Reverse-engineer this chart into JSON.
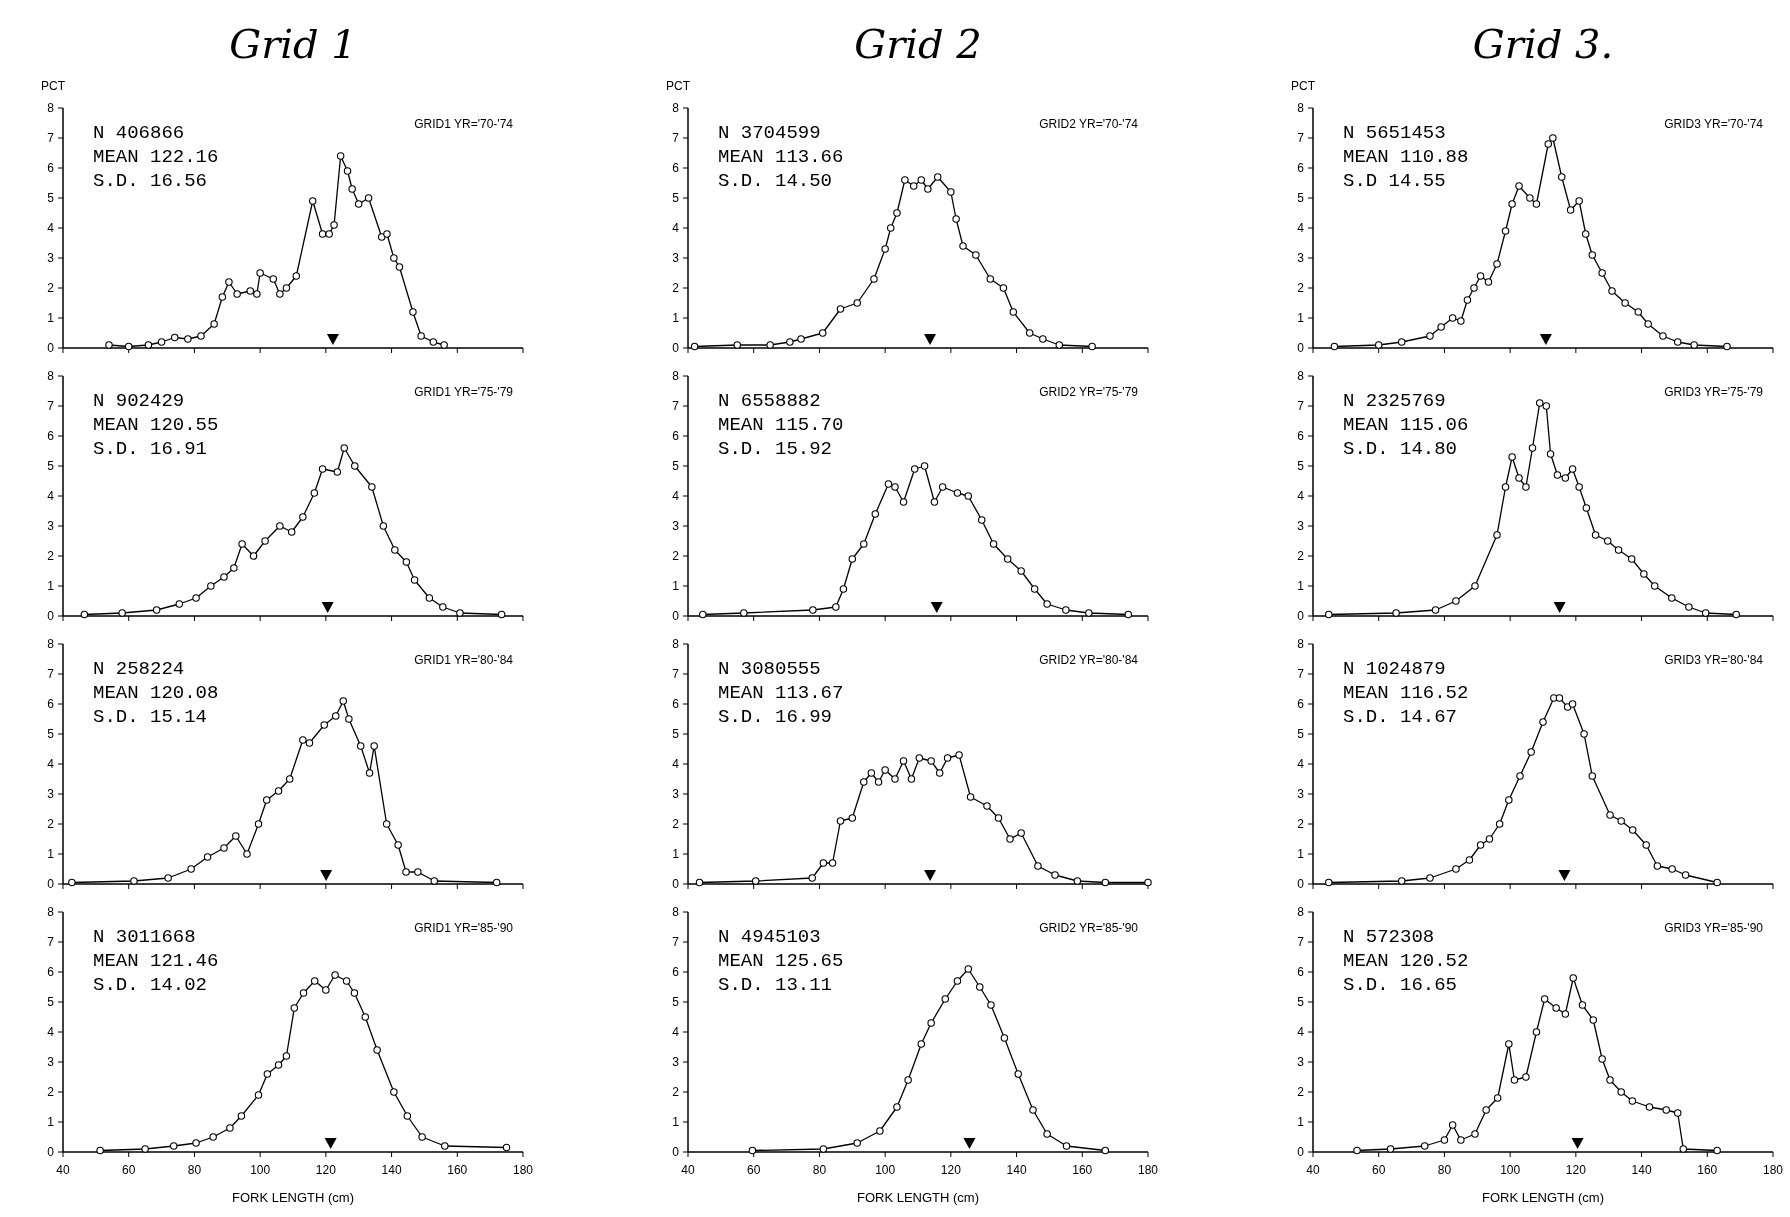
{
  "chart_data": [
    {
      "type": "line",
      "title": "Grid 1",
      "ylabel": "PCT",
      "annotations": [
        "GRID1 YR='70-'74",
        "N 406866",
        "MEAN 122.16",
        "S.D. 16.56"
      ],
      "x": [
        54,
        60,
        66,
        70,
        74,
        78,
        82,
        86,
        88.5,
        90.5,
        93,
        97,
        99,
        100,
        104,
        106,
        108,
        111,
        116,
        119,
        121,
        122.5,
        124.5,
        126.6,
        128,
        130,
        133,
        137,
        138.6,
        140.7,
        142.4,
        146.5,
        149,
        152.7,
        156
      ],
      "values": [
        0.1,
        0.05,
        0.1,
        0.2,
        0.35,
        0.3,
        0.4,
        0.8,
        1.7,
        2.2,
        1.8,
        1.9,
        1.8,
        2.5,
        2.3,
        1.8,
        2.0,
        2.4,
        4.9,
        3.8,
        3.8,
        4.1,
        6.4,
        5.9,
        5.3,
        4.8,
        5.0,
        3.7,
        3.8,
        3.0,
        2.7,
        1.2,
        0.4,
        0.2,
        0.1
      ],
      "color": "#000000",
      "marker": "circle",
      "line_style": "solid",
      "xlim": [
        40,
        180
      ],
      "ylim": [
        0,
        8
      ],
      "xticks": [
        40,
        60,
        80,
        100,
        120,
        140,
        160,
        180
      ],
      "yticks": [
        0,
        1,
        2,
        3,
        4,
        5,
        6,
        7,
        8
      ],
      "tick_labels": "y",
      "series": [
        {
          "type": "scatter",
          "x": [
            122.16
          ],
          "values": [
            0.3
          ],
          "color": "#000000",
          "marker": "triangle"
        }
      ]
    },
    {
      "type": "line",
      "title": "Grid 2",
      "ylabel": "PCT",
      "annotations": [
        "GRID2 YR='70-'74",
        "N 3704599",
        "MEAN 113.66",
        "S.D. 14.50"
      ],
      "x": [
        42,
        55,
        65,
        71,
        74.4,
        81,
        86.4,
        91.5,
        96.6,
        100,
        101.7,
        103.6,
        106,
        108.7,
        111,
        113,
        116,
        120,
        121.6,
        123.7,
        127.6,
        132,
        136,
        139,
        144,
        148,
        153,
        163
      ],
      "values": [
        0.05,
        0.1,
        0.1,
        0.2,
        0.3,
        0.5,
        1.3,
        1.5,
        2.3,
        3.3,
        4.0,
        4.5,
        5.6,
        5.4,
        5.6,
        5.3,
        5.7,
        5.2,
        4.3,
        3.4,
        3.1,
        2.3,
        2.0,
        1.2,
        0.5,
        0.3,
        0.1,
        0.05
      ],
      "color": "#000000",
      "marker": "circle",
      "line_style": "solid",
      "xlim": [
        40,
        180
      ],
      "ylim": [
        0,
        8
      ],
      "xticks": [
        40,
        60,
        80,
        100,
        120,
        140,
        160,
        180
      ],
      "yticks": [
        0,
        1,
        2,
        3,
        4,
        5,
        6,
        7,
        8
      ],
      "tick_labels": "y",
      "series": [
        {
          "type": "scatter",
          "x": [
            113.66
          ],
          "values": [
            0.3
          ],
          "color": "#000000",
          "marker": "triangle"
        }
      ]
    },
    {
      "type": "line",
      "title": "Grid 3.",
      "ylabel": "PCT",
      "annotations": [
        "GRID3 YR='70-'74",
        "N 5651453",
        "MEAN 110.88",
        "S.D 14.55"
      ],
      "x": [
        46.5,
        60,
        67,
        75.6,
        79,
        82.5,
        85,
        87,
        89,
        91,
        93.4,
        96,
        98.6,
        100.6,
        102.7,
        106,
        108,
        111.6,
        113,
        115.7,
        118.4,
        121,
        123,
        125,
        128,
        131,
        135,
        139,
        142,
        146.5,
        151,
        156,
        166
      ],
      "values": [
        0.05,
        0.1,
        0.2,
        0.4,
        0.7,
        1.0,
        0.9,
        1.6,
        2.0,
        2.4,
        2.2,
        2.8,
        3.9,
        4.8,
        5.4,
        5.0,
        4.8,
        6.8,
        7.0,
        5.7,
        4.6,
        4.9,
        3.8,
        3.1,
        2.5,
        1.9,
        1.5,
        1.2,
        0.8,
        0.4,
        0.2,
        0.1,
        0.05
      ],
      "color": "#000000",
      "marker": "circle",
      "line_style": "solid",
      "xlim": [
        40,
        180
      ],
      "ylim": [
        0,
        8
      ],
      "xticks": [
        40,
        60,
        80,
        100,
        120,
        140,
        160,
        180
      ],
      "yticks": [
        0,
        1,
        2,
        3,
        4,
        5,
        6,
        7,
        8
      ],
      "tick_labels": "y",
      "series": [
        {
          "type": "scatter",
          "x": [
            110.88
          ],
          "values": [
            0.3
          ],
          "color": "#000000",
          "marker": "triangle"
        }
      ]
    },
    {
      "type": "line",
      "annotations": [
        "GRID1 YR='75-'79",
        "N 902429",
        "MEAN 120.55",
        "S.D. 16.91"
      ],
      "x": [
        46.5,
        58,
        68.5,
        75.4,
        80.5,
        85,
        89,
        92,
        94.5,
        98,
        101.5,
        106,
        109.6,
        113,
        116.5,
        119,
        123.5,
        125.6,
        128.8,
        134,
        137.5,
        141,
        144.5,
        147,
        151.5,
        155.6,
        160.8,
        173.5
      ],
      "values": [
        0.05,
        0.1,
        0.2,
        0.4,
        0.6,
        1.0,
        1.3,
        1.6,
        2.4,
        2.0,
        2.5,
        3.0,
        2.8,
        3.3,
        4.1,
        4.9,
        4.8,
        5.6,
        5.0,
        4.3,
        3.0,
        2.2,
        1.8,
        1.2,
        0.6,
        0.3,
        0.1,
        0.05
      ],
      "color": "#000000",
      "marker": "circle",
      "line_style": "solid",
      "xlim": [
        40,
        180
      ],
      "ylim": [
        0,
        8
      ],
      "xticks": [
        40,
        60,
        80,
        100,
        120,
        140,
        160,
        180
      ],
      "yticks": [
        0,
        1,
        2,
        3,
        4,
        5,
        6,
        7,
        8
      ],
      "tick_labels": "y",
      "series": [
        {
          "type": "scatter",
          "x": [
            120.55
          ],
          "values": [
            0.3
          ],
          "color": "#000000",
          "marker": "triangle"
        }
      ]
    },
    {
      "type": "line",
      "annotations": [
        "GRID2 YR='75-'79",
        "N 6558882",
        "MEAN 115.70",
        "S.D. 15.92"
      ],
      "x": [
        44.5,
        57,
        78,
        85,
        87.3,
        90,
        93.5,
        97,
        101,
        103,
        105.6,
        109,
        112,
        115,
        117.5,
        122,
        125.3,
        129.4,
        133,
        137.3,
        141.4,
        145.5,
        149.3,
        155,
        162,
        174
      ],
      "values": [
        0.05,
        0.1,
        0.2,
        0.3,
        0.9,
        1.9,
        2.4,
        3.4,
        4.4,
        4.3,
        3.8,
        4.9,
        5.0,
        3.8,
        4.3,
        4.1,
        4.0,
        3.2,
        2.4,
        1.9,
        1.5,
        0.9,
        0.4,
        0.2,
        0.1,
        0.05
      ],
      "color": "#000000",
      "marker": "circle",
      "line_style": "solid",
      "xlim": [
        40,
        180
      ],
      "ylim": [
        0,
        8
      ],
      "xticks": [
        40,
        60,
        80,
        100,
        120,
        140,
        160,
        180
      ],
      "yticks": [
        0,
        1,
        2,
        3,
        4,
        5,
        6,
        7,
        8
      ],
      "tick_labels": "y",
      "series": [
        {
          "type": "scatter",
          "x": [
            115.7
          ],
          "values": [
            0.3
          ],
          "color": "#000000",
          "marker": "triangle"
        }
      ]
    },
    {
      "type": "line",
      "annotations": [
        "GRID3 YR='75-'79",
        "N 2325769",
        "MEAN 115.06",
        "S.D. 14.80"
      ],
      "x": [
        44.8,
        65.3,
        77.3,
        83.5,
        89.3,
        96,
        98.6,
        100.6,
        102.7,
        104.8,
        106.8,
        109,
        111,
        112.3,
        114.4,
        116.8,
        119,
        121,
        123.2,
        126,
        129.7,
        133,
        137,
        140.7,
        144,
        149.2,
        154.4,
        159.5,
        168.8
      ],
      "values": [
        0.05,
        0.1,
        0.2,
        0.5,
        1.0,
        2.7,
        4.3,
        5.3,
        4.6,
        4.3,
        5.6,
        7.1,
        7.0,
        5.4,
        4.7,
        4.6,
        4.9,
        4.3,
        3.6,
        2.7,
        2.5,
        2.2,
        1.9,
        1.4,
        1.0,
        0.6,
        0.3,
        0.1,
        0.05
      ],
      "color": "#000000",
      "marker": "circle",
      "line_style": "solid",
      "xlim": [
        40,
        180
      ],
      "ylim": [
        0,
        8
      ],
      "xticks": [
        40,
        60,
        80,
        100,
        120,
        140,
        160,
        180
      ],
      "yticks": [
        0,
        1,
        2,
        3,
        4,
        5,
        6,
        7,
        8
      ],
      "tick_labels": "y",
      "series": [
        {
          "type": "scatter",
          "x": [
            115.06
          ],
          "values": [
            0.3
          ],
          "color": "#000000",
          "marker": "triangle"
        }
      ]
    },
    {
      "type": "line",
      "annotations": [
        "GRID1 YR='80-'84",
        "N 258224",
        "MEAN 120.08",
        "S.D. 15.14"
      ],
      "x": [
        42.7,
        61.6,
        72,
        79,
        84,
        89,
        92.6,
        96,
        99.5,
        102,
        105.6,
        109,
        113,
        115,
        119.5,
        123,
        125.3,
        127,
        130.6,
        133.3,
        134.7,
        138.5,
        142,
        144.4,
        148,
        153,
        172
      ],
      "values": [
        0.05,
        0.1,
        0.2,
        0.5,
        0.9,
        1.2,
        1.6,
        1.0,
        2.0,
        2.8,
        3.1,
        3.5,
        4.8,
        4.7,
        5.3,
        5.6,
        6.1,
        5.5,
        4.6,
        3.7,
        4.6,
        2.0,
        1.3,
        0.4,
        0.4,
        0.1,
        0.05
      ],
      "color": "#000000",
      "marker": "circle",
      "line_style": "solid",
      "xlim": [
        40,
        180
      ],
      "ylim": [
        0,
        8
      ],
      "xticks": [
        40,
        60,
        80,
        100,
        120,
        140,
        160,
        180
      ],
      "yticks": [
        0,
        1,
        2,
        3,
        4,
        5,
        6,
        7,
        8
      ],
      "tick_labels": "y",
      "series": [
        {
          "type": "scatter",
          "x": [
            120.08
          ],
          "values": [
            0.3
          ],
          "color": "#000000",
          "marker": "triangle"
        }
      ]
    },
    {
      "type": "line",
      "annotations": [
        "GRID2 YR='80-'84",
        "N 3080555",
        "MEAN 113.67",
        "S.D. 16.99"
      ],
      "x": [
        43.5,
        60.6,
        77.8,
        81.2,
        84,
        86.4,
        90,
        93.5,
        95.8,
        98,
        100,
        103,
        105.6,
        108,
        110.4,
        114,
        116.6,
        119,
        122.5,
        126,
        131,
        134.5,
        138,
        141.4,
        146.5,
        151.7,
        158.5,
        167,
        180
      ],
      "values": [
        0.05,
        0.1,
        0.2,
        0.7,
        0.7,
        2.1,
        2.2,
        3.4,
        3.7,
        3.4,
        3.8,
        3.5,
        4.1,
        3.5,
        4.2,
        4.1,
        3.7,
        4.2,
        4.3,
        2.9,
        2.6,
        2.2,
        1.5,
        1.7,
        0.6,
        0.3,
        0.1,
        0.05,
        0.05
      ],
      "color": "#000000",
      "marker": "circle",
      "line_style": "solid",
      "xlim": [
        40,
        180
      ],
      "ylim": [
        0,
        8
      ],
      "xticks": [
        40,
        60,
        80,
        100,
        120,
        140,
        160,
        180
      ],
      "yticks": [
        0,
        1,
        2,
        3,
        4,
        5,
        6,
        7,
        8
      ],
      "tick_labels": "y",
      "series": [
        {
          "type": "scatter",
          "x": [
            113.67
          ],
          "values": [
            0.3
          ],
          "color": "#000000",
          "marker": "triangle"
        }
      ]
    },
    {
      "type": "line",
      "annotations": [
        "GRID3 YR='80-'84",
        "N 1024879",
        "MEAN 116.52",
        "S.D. 14.67"
      ],
      "x": [
        44.8,
        67,
        75.6,
        83.5,
        87.6,
        91,
        93.7,
        96.8,
        99.6,
        103,
        106.4,
        110,
        113.3,
        115,
        117.5,
        119,
        122.5,
        125,
        130.4,
        133.8,
        137.3,
        141.4,
        144.8,
        149.3,
        153.4,
        163
      ],
      "values": [
        0.05,
        0.1,
        0.2,
        0.5,
        0.8,
        1.3,
        1.5,
        2.0,
        2.8,
        3.6,
        4.4,
        5.4,
        6.2,
        6.2,
        5.9,
        6.0,
        5.0,
        3.6,
        2.3,
        2.1,
        1.8,
        1.3,
        0.6,
        0.5,
        0.3,
        0.05
      ],
      "color": "#000000",
      "marker": "circle",
      "line_style": "solid",
      "xlim": [
        40,
        180
      ],
      "ylim": [
        0,
        8
      ],
      "xticks": [
        40,
        60,
        80,
        100,
        120,
        140,
        160,
        180
      ],
      "yticks": [
        0,
        1,
        2,
        3,
        4,
        5,
        6,
        7,
        8
      ],
      "tick_labels": "y",
      "series": [
        {
          "type": "scatter",
          "x": [
            116.52
          ],
          "values": [
            0.3
          ],
          "color": "#000000",
          "marker": "triangle"
        }
      ]
    },
    {
      "type": "line",
      "xlabel": "FORK LENGTH (cm)",
      "annotations": [
        "GRID1 YR='85-'90",
        "N 3011668",
        "MEAN 121.46",
        "S.D. 14.02"
      ],
      "x": [
        51.3,
        65,
        73.7,
        80.5,
        85.7,
        90.8,
        94.3,
        99.5,
        102.2,
        105.6,
        108,
        110.4,
        113.2,
        116.6,
        120,
        122.8,
        126.3,
        128.7,
        132,
        135.6,
        140.7,
        144.8,
        149.3,
        156.2,
        175
      ],
      "values": [
        0.05,
        0.1,
        0.2,
        0.3,
        0.5,
        0.8,
        1.2,
        1.9,
        2.6,
        2.9,
        3.2,
        4.8,
        5.3,
        5.7,
        5.4,
        5.9,
        5.7,
        5.3,
        4.5,
        3.4,
        2.0,
        1.2,
        0.5,
        0.2,
        0.15
      ],
      "color": "#000000",
      "marker": "circle",
      "line_style": "solid",
      "xlim": [
        40,
        180
      ],
      "ylim": [
        0,
        8
      ],
      "xticks": [
        40,
        60,
        80,
        100,
        120,
        140,
        160,
        180
      ],
      "yticks": [
        0,
        1,
        2,
        3,
        4,
        5,
        6,
        7,
        8
      ],
      "series": [
        {
          "type": "scatter",
          "x": [
            121.46
          ],
          "values": [
            0.3
          ],
          "color": "#000000",
          "marker": "triangle"
        }
      ]
    },
    {
      "type": "line",
      "xlabel": "FORK LENGTH (cm)",
      "annotations": [
        "GRID2 YR='85-'90",
        "N 4945103",
        "MEAN 125.65",
        "S.D. 13.11"
      ],
      "x": [
        59.6,
        81.2,
        91.5,
        98.4,
        103.6,
        107,
        111,
        114,
        118.3,
        122,
        125.3,
        128.8,
        132.2,
        136.3,
        140.5,
        145,
        149.3,
        155.2,
        167
      ],
      "values": [
        0.05,
        0.1,
        0.3,
        0.7,
        1.5,
        2.4,
        3.6,
        4.3,
        5.1,
        5.7,
        6.1,
        5.5,
        4.9,
        3.8,
        2.6,
        1.4,
        0.6,
        0.2,
        0.05
      ],
      "color": "#000000",
      "marker": "circle",
      "line_style": "solid",
      "xlim": [
        40,
        180
      ],
      "ylim": [
        0,
        8
      ],
      "xticks": [
        40,
        60,
        80,
        100,
        120,
        140,
        160,
        180
      ],
      "yticks": [
        0,
        1,
        2,
        3,
        4,
        5,
        6,
        7,
        8
      ],
      "series": [
        {
          "type": "scatter",
          "x": [
            125.65
          ],
          "values": [
            0.3
          ],
          "color": "#000000",
          "marker": "triangle"
        }
      ]
    },
    {
      "type": "line",
      "xlabel": "FORK LENGTH (cm)",
      "annotations": [
        "GRID3 YR='85-'90",
        "N 572308",
        "MEAN 120.52",
        "S.D. 16.65"
      ],
      "x": [
        53.4,
        63.6,
        74,
        80,
        82.5,
        85,
        89.3,
        92.7,
        96.2,
        99.6,
        101.3,
        104.8,
        108,
        110.5,
        114,
        116.8,
        119.2,
        122,
        125.3,
        128,
        130.4,
        133.8,
        137.2,
        142.4,
        147.5,
        151,
        152.7,
        163
      ],
      "values": [
        0.05,
        0.1,
        0.2,
        0.4,
        0.9,
        0.4,
        0.6,
        1.4,
        1.8,
        3.6,
        2.4,
        2.5,
        4.0,
        5.1,
        4.8,
        4.6,
        5.8,
        4.9,
        4.4,
        3.1,
        2.4,
        2.0,
        1.7,
        1.5,
        1.4,
        1.3,
        0.1,
        0.05
      ],
      "color": "#000000",
      "marker": "circle",
      "line_style": "solid",
      "xlim": [
        40,
        180
      ],
      "ylim": [
        0,
        8
      ],
      "xticks": [
        40,
        60,
        80,
        100,
        120,
        140,
        160,
        180
      ],
      "yticks": [
        0,
        1,
        2,
        3,
        4,
        5,
        6,
        7,
        8
      ],
      "series": [
        {
          "type": "scatter",
          "x": [
            120.52
          ],
          "values": [
            0.3
          ],
          "color": "#000000",
          "marker": "triangle"
        }
      ]
    }
  ]
}
